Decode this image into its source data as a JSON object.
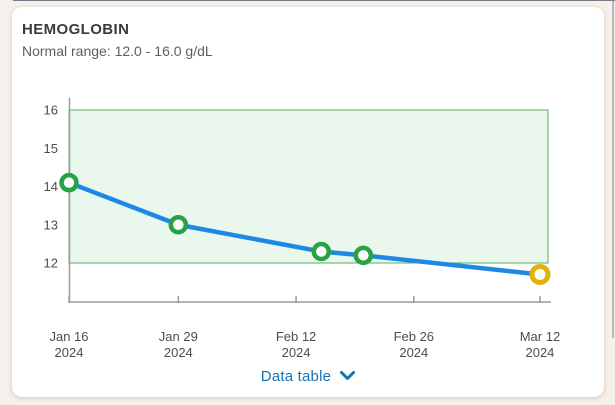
{
  "card": {
    "title": "HEMOGLOBIN",
    "subtitle": "Normal range: 12.0 - 16.0 g/dL"
  },
  "chart_data": {
    "type": "line",
    "title": "HEMOGLOBIN",
    "unit": "g/dL",
    "normal_range": {
      "low": 12.0,
      "high": 16.0
    },
    "ylim": [
      11,
      16.3
    ],
    "y_ticks": [
      16,
      15,
      14,
      13,
      12
    ],
    "x_tick_labels": [
      [
        "Jan 16",
        "2024"
      ],
      [
        "Jan 29",
        "2024"
      ],
      [
        "Feb 12",
        "2024"
      ],
      [
        "Feb 26",
        "2024"
      ],
      [
        "Mar 12",
        "2024"
      ]
    ],
    "x_tick_days": [
      0,
      13,
      27,
      41,
      56
    ],
    "points": [
      {
        "date": "Jan 16 2024",
        "day": 0,
        "value": 14.1,
        "status": "normal"
      },
      {
        "date": "Jan 29 2024",
        "day": 13,
        "value": 13.0,
        "status": "normal"
      },
      {
        "date": "Feb 15 2024",
        "day": 30,
        "value": 12.3,
        "status": "normal"
      },
      {
        "date": "Feb 20 2024",
        "day": 35,
        "value": 12.2,
        "status": "normal"
      },
      {
        "date": "Mar 12 2024",
        "day": 56,
        "value": 11.7,
        "status": "low"
      }
    ],
    "legend": "none",
    "grid": "off",
    "colors": {
      "line": "#1e88e5",
      "normal_point": "#27a345",
      "low_point": "#e0b107",
      "band_fill": "#eaf7ed",
      "band_border": "#57ad68",
      "axis": "#9a9a9a",
      "tick_label": "#4d4d4d"
    }
  },
  "footer": {
    "data_table_label": "Data table",
    "link_color": "#1572b6"
  }
}
